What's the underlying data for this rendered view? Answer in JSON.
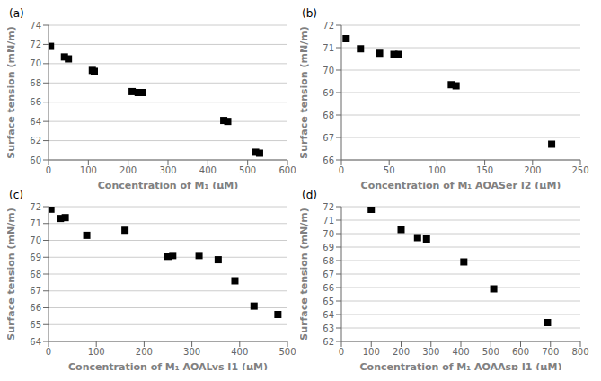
{
  "chart_data": [
    {
      "type": "scatter",
      "title": "(a)",
      "xlabel": "Concentration of M₁ (μM)",
      "ylabel": "Surface tension  (mN/m)",
      "xlim": [
        0,
        600
      ],
      "ylim": [
        60,
        74
      ],
      "xticks": [
        0,
        100,
        200,
        300,
        400,
        500,
        600
      ],
      "yticks": [
        60,
        62,
        64,
        66,
        68,
        70,
        72,
        74
      ],
      "x": [
        5,
        40,
        50,
        110,
        115,
        210,
        225,
        235,
        440,
        450,
        520,
        530
      ],
      "values": [
        71.8,
        70.7,
        70.5,
        69.3,
        69.2,
        67.1,
        67.0,
        67.0,
        64.1,
        64.0,
        60.8,
        60.7
      ],
      "color": "black",
      "marker": "square",
      "grid": "y"
    },
    {
      "type": "scatter",
      "title": "(b)",
      "xlabel": "Concentration of  M₁ AOASer I2 (μM)",
      "ylabel": "Surface tension  (mN/m)",
      "xlim": [
        0,
        250
      ],
      "ylim": [
        66,
        72
      ],
      "xticks": [
        0,
        50,
        100,
        150,
        200,
        250
      ],
      "yticks": [
        66,
        67,
        68,
        69,
        70,
        71,
        72
      ],
      "x": [
        5,
        20,
        40,
        55,
        60,
        115,
        120,
        220
      ],
      "values": [
        71.4,
        70.95,
        70.75,
        70.7,
        70.7,
        69.35,
        69.3,
        66.7
      ],
      "color": "black",
      "marker": "square",
      "grid": "y"
    },
    {
      "type": "scatter",
      "title": "(c)",
      "xlabel": "Concentration of M₁ AOALys I1 (μM)",
      "ylabel": "Surface tension  (mN/m)",
      "xlim": [
        0,
        500
      ],
      "ylim": [
        64,
        72
      ],
      "xticks": [
        0,
        100,
        200,
        300,
        400,
        500
      ],
      "yticks": [
        64,
        65,
        66,
        67,
        68,
        69,
        70,
        71,
        72
      ],
      "x": [
        5,
        25,
        35,
        80,
        160,
        250,
        260,
        315,
        355,
        390,
        430,
        480
      ],
      "values": [
        71.85,
        71.3,
        71.35,
        70.3,
        70.6,
        69.05,
        69.1,
        69.1,
        68.85,
        67.6,
        66.1,
        65.6
      ],
      "color": "black",
      "marker": "square",
      "grid": "y"
    },
    {
      "type": "scatter",
      "title": "(d)",
      "xlabel": "Concentration of  M₁ AOAAsp I1 (μM)",
      "ylabel": "Surface tension  (mN/m)",
      "xlim": [
        0,
        800
      ],
      "ylim": [
        62,
        72
      ],
      "xticks": [
        0,
        100,
        200,
        300,
        400,
        500,
        600,
        700,
        800
      ],
      "yticks": [
        62,
        63,
        64,
        65,
        66,
        67,
        68,
        69,
        70,
        71,
        72
      ],
      "x": [
        100,
        200,
        255,
        285,
        410,
        510,
        690
      ],
      "values": [
        71.8,
        70.3,
        69.7,
        69.6,
        67.9,
        65.9,
        63.4
      ],
      "color": "black",
      "marker": "square",
      "grid": "y"
    }
  ]
}
